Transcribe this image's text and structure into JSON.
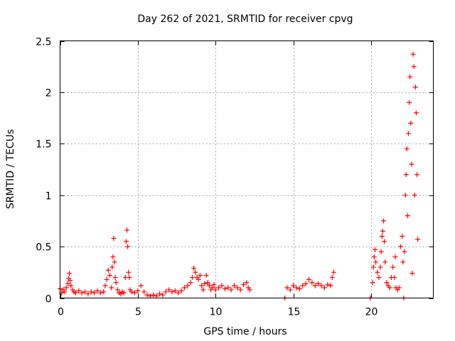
{
  "chart_data": {
    "type": "scatter",
    "title": "Day 262 of 2021, SRMTID for receiver cpvg",
    "xlabel": "GPS time / hours",
    "ylabel": "SRMTID / TECUs",
    "xlim": [
      0,
      24
    ],
    "ylim": [
      0,
      2.5
    ],
    "xticks": [
      0,
      5,
      10,
      15,
      20
    ],
    "xtick_labels": [
      "0",
      "5",
      "10",
      "15",
      "20"
    ],
    "yticks": [
      0,
      0.5,
      1,
      1.5,
      2,
      2.5
    ],
    "ytick_labels": [
      "0",
      "0.5",
      "1",
      "1.5",
      "2",
      "2.5"
    ],
    "grid": true,
    "marker": "+",
    "color": "#ff0000",
    "series": [
      {
        "name": "SRMTID",
        "points": [
          [
            0.0,
            0.09
          ],
          [
            0.1,
            0.05
          ],
          [
            0.2,
            0.08
          ],
          [
            0.3,
            0.06
          ],
          [
            0.4,
            0.1
          ],
          [
            0.5,
            0.14
          ],
          [
            0.55,
            0.19
          ],
          [
            0.6,
            0.24
          ],
          [
            0.65,
            0.17
          ],
          [
            0.7,
            0.12
          ],
          [
            0.8,
            0.08
          ],
          [
            0.9,
            0.06
          ],
          [
            1.0,
            0.05
          ],
          [
            1.2,
            0.07
          ],
          [
            1.4,
            0.05
          ],
          [
            1.6,
            0.06
          ],
          [
            1.8,
            0.04
          ],
          [
            2.0,
            0.06
          ],
          [
            2.2,
            0.05
          ],
          [
            2.4,
            0.07
          ],
          [
            2.6,
            0.05
          ],
          [
            2.8,
            0.06
          ],
          [
            2.9,
            0.12
          ],
          [
            3.0,
            0.18
          ],
          [
            3.1,
            0.27
          ],
          [
            3.2,
            0.22
          ],
          [
            3.3,
            0.1
          ],
          [
            3.35,
            0.3
          ],
          [
            3.4,
            0.4
          ],
          [
            3.45,
            0.58
          ],
          [
            3.5,
            0.35
          ],
          [
            3.55,
            0.2
          ],
          [
            3.6,
            0.15
          ],
          [
            3.7,
            0.08
          ],
          [
            3.8,
            0.05
          ],
          [
            3.9,
            0.04
          ],
          [
            4.0,
            0.06
          ],
          [
            4.1,
            0.05
          ],
          [
            4.2,
            0.2
          ],
          [
            4.25,
            0.55
          ],
          [
            4.3,
            0.66
          ],
          [
            4.35,
            0.5
          ],
          [
            4.4,
            0.25
          ],
          [
            4.45,
            0.2
          ],
          [
            4.5,
            0.08
          ],
          [
            4.6,
            0.06
          ],
          [
            4.8,
            0.05
          ],
          [
            5.0,
            0.07
          ],
          [
            5.2,
            0.12
          ],
          [
            5.4,
            0.06
          ],
          [
            5.6,
            0.03
          ],
          [
            5.8,
            0.02
          ],
          [
            6.0,
            0.03
          ],
          [
            6.2,
            0.02
          ],
          [
            6.4,
            0.04
          ],
          [
            6.6,
            0.03
          ],
          [
            6.8,
            0.06
          ],
          [
            7.0,
            0.08
          ],
          [
            7.2,
            0.06
          ],
          [
            7.4,
            0.07
          ],
          [
            7.6,
            0.05
          ],
          [
            7.8,
            0.07
          ],
          [
            8.0,
            0.1
          ],
          [
            8.2,
            0.12
          ],
          [
            8.4,
            0.15
          ],
          [
            8.5,
            0.2
          ],
          [
            8.6,
            0.29
          ],
          [
            8.7,
            0.25
          ],
          [
            8.8,
            0.2
          ],
          [
            8.9,
            0.18
          ],
          [
            9.0,
            0.22
          ],
          [
            9.1,
            0.12
          ],
          [
            9.2,
            0.08
          ],
          [
            9.3,
            0.14
          ],
          [
            9.4,
            0.22
          ],
          [
            9.5,
            0.15
          ],
          [
            9.6,
            0.12
          ],
          [
            9.7,
            0.08
          ],
          [
            9.8,
            0.1
          ],
          [
            9.9,
            0.13
          ],
          [
            10.0,
            0.08
          ],
          [
            10.2,
            0.1
          ],
          [
            10.4,
            0.12
          ],
          [
            10.6,
            0.09
          ],
          [
            10.8,
            0.1
          ],
          [
            11.0,
            0.08
          ],
          [
            11.2,
            0.12
          ],
          [
            11.4,
            0.1
          ],
          [
            11.6,
            0.08
          ],
          [
            11.8,
            0.13
          ],
          [
            12.0,
            0.15
          ],
          [
            12.1,
            0.1
          ],
          [
            12.2,
            0.08
          ],
          [
            14.45,
            0.0
          ],
          [
            14.6,
            0.1
          ],
          [
            14.8,
            0.08
          ],
          [
            15.0,
            0.12
          ],
          [
            15.2,
            0.1
          ],
          [
            15.4,
            0.09
          ],
          [
            15.6,
            0.12
          ],
          [
            15.8,
            0.14
          ],
          [
            16.0,
            0.18
          ],
          [
            16.2,
            0.15
          ],
          [
            16.4,
            0.12
          ],
          [
            16.6,
            0.14
          ],
          [
            16.8,
            0.12
          ],
          [
            17.0,
            0.1
          ],
          [
            17.2,
            0.13
          ],
          [
            17.4,
            0.12
          ],
          [
            17.5,
            0.2
          ],
          [
            17.6,
            0.25
          ],
          [
            19.95,
            0.0
          ],
          [
            20.1,
            0.15
          ],
          [
            20.15,
            0.3
          ],
          [
            20.2,
            0.4
          ],
          [
            20.25,
            0.47
          ],
          [
            20.3,
            0.35
          ],
          [
            20.4,
            0.25
          ],
          [
            20.5,
            0.2
          ],
          [
            20.6,
            0.3
          ],
          [
            20.65,
            0.45
          ],
          [
            20.7,
            0.6
          ],
          [
            20.75,
            0.65
          ],
          [
            20.8,
            0.75
          ],
          [
            20.85,
            0.55
          ],
          [
            20.9,
            0.35
          ],
          [
            21.0,
            0.15
          ],
          [
            21.1,
            0.12
          ],
          [
            21.2,
            0.1
          ],
          [
            21.3,
            0.2
          ],
          [
            21.4,
            0.3
          ],
          [
            21.5,
            0.2
          ],
          [
            21.55,
            0.4
          ],
          [
            21.6,
            0.1
          ],
          [
            21.7,
            0.08
          ],
          [
            21.8,
            0.1
          ],
          [
            21.9,
            0.5
          ],
          [
            22.0,
            0.6
          ],
          [
            22.05,
            0.35
          ],
          [
            22.1,
            0.0
          ],
          [
            22.15,
            0.45
          ],
          [
            22.2,
            1.0
          ],
          [
            22.25,
            1.2
          ],
          [
            22.3,
            1.45
          ],
          [
            22.35,
            0.8
          ],
          [
            22.4,
            1.6
          ],
          [
            22.45,
            1.9
          ],
          [
            22.5,
            2.15
          ],
          [
            22.55,
            1.7
          ],
          [
            22.6,
            1.3
          ],
          [
            22.65,
            0.24
          ],
          [
            22.7,
            2.37
          ],
          [
            22.75,
            2.25
          ],
          [
            22.8,
            1.0
          ],
          [
            22.85,
            2.05
          ],
          [
            22.9,
            1.8
          ],
          [
            22.95,
            1.2
          ],
          [
            23.0,
            0.57
          ]
        ]
      }
    ]
  }
}
